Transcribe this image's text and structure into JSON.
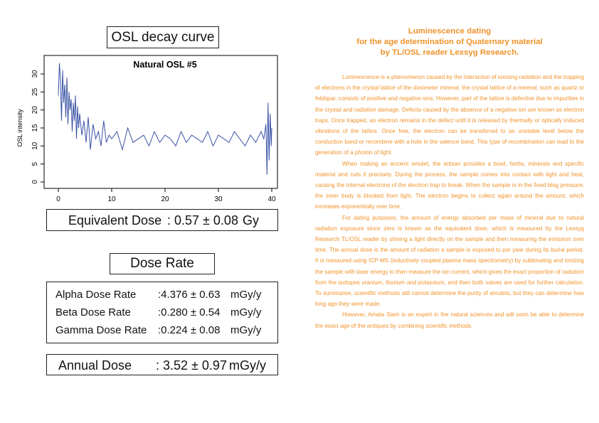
{
  "chart_title_label": "OSL decay curve",
  "chart_data": {
    "type": "line",
    "title": "Natural OSL #5",
    "xlabel": "",
    "ylabel": "OSL intensity",
    "xlim": [
      0,
      40
    ],
    "ylim": [
      0,
      30
    ],
    "x_ticks": [
      "0",
      "10",
      "20",
      "30",
      "40"
    ],
    "y_ticks": [
      "0",
      "5",
      "10",
      "15",
      "20",
      "25",
      "30"
    ],
    "grid": false,
    "series_color": "#3a52a6",
    "series": [
      {
        "x": [
          0,
          0.2,
          0.4,
          0.6,
          0.8,
          1,
          1.2,
          1.4,
          1.6,
          1.8,
          2,
          2.2,
          2.4,
          2.6,
          2.8,
          3,
          3.2,
          3.4,
          3.6,
          3.8,
          4,
          4.4,
          4.8,
          5.2,
          5.6,
          6,
          6.5,
          7,
          7.5,
          8,
          8.5,
          9,
          9.5,
          10,
          11,
          12,
          13,
          14,
          15,
          16,
          17,
          18,
          19,
          20,
          21,
          22,
          23,
          24,
          25,
          26,
          27,
          28,
          29,
          30,
          31,
          32,
          33,
          34,
          35,
          36,
          37,
          38,
          38.5,
          38.9,
          39.1,
          39.3,
          39.5,
          39.7,
          39.9,
          40
        ],
        "values": [
          24,
          33,
          28,
          17,
          31,
          22,
          27,
          18,
          29,
          16,
          25,
          20,
          23,
          14,
          22,
          17,
          24,
          12,
          21,
          15,
          19,
          13,
          17,
          11,
          18,
          9,
          16,
          12,
          14,
          10,
          17,
          11,
          13,
          12,
          14,
          9,
          15,
          11,
          12,
          13,
          10,
          14,
          11,
          13,
          12,
          10,
          14,
          11,
          13,
          12,
          11,
          14,
          10,
          13,
          12,
          11,
          14,
          12,
          10,
          13,
          11,
          14,
          12,
          16,
          2,
          22,
          6,
          19,
          10,
          15
        ]
      }
    ]
  },
  "equivalent_dose": {
    "label": "Equivalent Dose",
    "value": ": 0.57 ± 0.08",
    "unit": "Gy"
  },
  "dose_rate_title": "Dose Rate",
  "dose_rates": [
    {
      "label": "Alpha Dose Rate",
      "value": ":4.376 ± 0.63",
      "unit": "mGy/y"
    },
    {
      "label": "Beta Dose Rate",
      "value": ":0.280 ± 0.54",
      "unit": "mGy/y"
    },
    {
      "label": "Gamma Dose Rate",
      "value": ":0.224 ± 0.08",
      "unit": "mGy/y"
    }
  ],
  "annual_dose": {
    "label": "Annual Dose",
    "value": ": 3.52 ± 0.97",
    "unit": "mGy/y"
  },
  "heading_lines": [
    "Luminescence dating",
    "for the age determination of Quaternary material",
    "by TL/OSL reader Lexsyg Research."
  ],
  "paragraphs": [
    "Luminescence is a phenomenon caused by the interaction of ionising radiation and the trapping of electrons in the crystal lattice of the dosimeter mineral. the crystal lattice of a mineral, such as quartz or feldspar, consists of positive and negative ions. However, part of the lattice is defective due to impurities in the crystal and radiation damage. Defects caused by the absence of a negative ion are known as electron traps. Once trapped, an electron remains in the defect until it is released by thermally or optically induced vibrations of the lattice. Once free, the electron can be transferred to an unstable level below the conduction band or recombine with a hole in the valence band. This type of recombination can lead to the generation of a photon of light.",
    "When making an ancient amulet, the artisan provides a bowl, herbs, minerals and specific material and cuts it precisely. During the process, the sample comes into contact with light and heat, causing the internal electrons of the electron trap to break. When the sample is in the fixed blog pressure, the inner body is blocked from light. The electron begins to collect again around the amount, which increases exponentially over time.",
    "For dating purposes, the amount of energy absorbed per mass of mineral due to natural radiation exposure since zero is known as the equivalent dose, which is measured by the Lexsyg Research TL/OSL reader by shining a light directly on the sample and then measuring the emission over time. The annual dose is the amount of radiation a sample is exposed to per year during its burial period. It is measured using ICP-MS (inductively coupled plasma mass spectrometry) by sublimating and ionizing the sample with laser energy to then measure the ion current, which gives the exact proportion of radiation from the isotopes uranium, thorium and potassium, and then both values are used for further calculation. To summarise, scientific methods still cannot determine the purity of amulets, but they can determine how long ago they were made.",
    "However, Amata Siam is an expert in the natural sciences and will soon be able to determine the exact age of the antiques by combining scientific methods."
  ]
}
